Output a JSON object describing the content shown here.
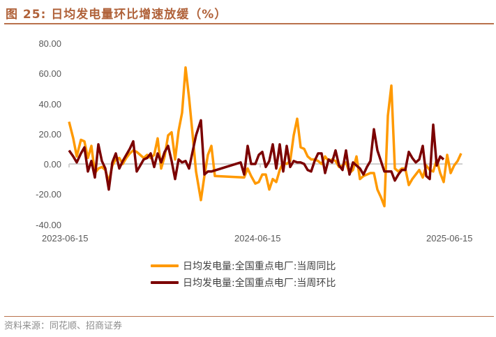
{
  "header": {
    "title": "图 25:  日均发电量环比增速放缓（%）"
  },
  "legend": {
    "items": [
      {
        "label": "日均发电量:全国重点电厂:当周同比",
        "color": "#FF9900"
      },
      {
        "label": "日均发电量:全国重点电厂:当周环比",
        "color": "#7B0000"
      }
    ]
  },
  "footer": {
    "source": "资料来源：同花顺、招商证券"
  },
  "chart_data": {
    "type": "line",
    "title": "图 25: 日均发电量环比增速放缓（%）",
    "xlabel": "",
    "ylabel": "",
    "ylim": [
      -40,
      80
    ],
    "yticks": [
      "80.00",
      "60.00",
      "40.00",
      "20.00",
      "0.00",
      "-20.00",
      "-40.00"
    ],
    "xticks": [
      "2023-06-15",
      "2024-06-15",
      "2025-06-15"
    ],
    "grid": false,
    "legend_position": "bottom",
    "series": [
      {
        "name": "日均发电量:全国重点电厂:当周同比",
        "color": "#FF9900",
        "points": [
          [
            99,
            28
          ],
          [
            105,
            17
          ],
          [
            110,
            5
          ],
          [
            116,
            16
          ],
          [
            121,
            15
          ],
          [
            126,
            4
          ],
          [
            131,
            12
          ],
          [
            136,
            -6
          ],
          [
            141,
            -3
          ],
          [
            146,
            -2
          ],
          [
            151,
            -4
          ],
          [
            156,
            -12
          ],
          [
            161,
            -1
          ],
          [
            166,
            3
          ],
          [
            171,
            4
          ],
          [
            176,
            0
          ],
          [
            181,
            4
          ],
          [
            186,
            7
          ],
          [
            191,
            9
          ],
          [
            196,
            8
          ],
          [
            201,
            6
          ],
          [
            206,
            4
          ],
          [
            211,
            6
          ],
          [
            216,
            4
          ],
          [
            221,
            6
          ],
          [
            226,
            17
          ],
          [
            231,
            -3
          ],
          [
            236,
            5
          ],
          [
            241,
            19
          ],
          [
            246,
            21
          ],
          [
            251,
            3
          ],
          [
            256,
            22
          ],
          [
            261,
            34
          ],
          [
            266,
            64
          ],
          [
            271,
            44
          ],
          [
            276,
            20
          ],
          [
            281,
            -5
          ],
          [
            288,
            -24
          ],
          [
            293,
            -8
          ],
          [
            298,
            6
          ],
          [
            303,
            12
          ],
          [
            308,
            -8
          ],
          [
            350,
            -9
          ],
          [
            355,
            -3
          ],
          [
            360,
            -8
          ],
          [
            366,
            -13
          ],
          [
            371,
            -12
          ],
          [
            376,
            -7
          ],
          [
            381,
            -7
          ],
          [
            386,
            -17
          ],
          [
            391,
            -10
          ],
          [
            396,
            -12
          ],
          [
            401,
            -4
          ],
          [
            406,
            1
          ],
          [
            411,
            0
          ],
          [
            416,
            2
          ],
          [
            421,
            19
          ],
          [
            426,
            30
          ],
          [
            431,
            11
          ],
          [
            436,
            10
          ],
          [
            441,
            5
          ],
          [
            446,
            3
          ],
          [
            451,
            3
          ],
          [
            456,
            2
          ],
          [
            461,
            0
          ],
          [
            466,
            5
          ],
          [
            471,
            2
          ],
          [
            476,
            3
          ],
          [
            481,
            2
          ],
          [
            486,
            -2
          ],
          [
            491,
            -1
          ],
          [
            496,
            1
          ],
          [
            501,
            -6
          ],
          [
            506,
            -4
          ],
          [
            511,
            5
          ],
          [
            516,
            -10
          ],
          [
            521,
            -8
          ],
          [
            526,
            -7
          ],
          [
            531,
            -6
          ],
          [
            536,
            -6
          ],
          [
            541,
            -17
          ],
          [
            546,
            -22
          ],
          [
            551,
            -28
          ],
          [
            556,
            32
          ],
          [
            561,
            52
          ],
          [
            566,
            -3
          ],
          [
            571,
            -5
          ],
          [
            576,
            -3
          ],
          [
            581,
            -3
          ],
          [
            586,
            -14
          ],
          [
            591,
            -10
          ],
          [
            596,
            -7
          ],
          [
            601,
            -4
          ],
          [
            606,
            -9
          ],
          [
            611,
            -1
          ],
          [
            616,
            -4
          ],
          [
            621,
            -5
          ],
          [
            626,
            3
          ],
          [
            631,
            -6
          ],
          [
            636,
            -12
          ],
          [
            641,
            6
          ],
          [
            646,
            -6
          ],
          [
            651,
            -1
          ],
          [
            656,
            2
          ],
          [
            661,
            7
          ]
        ]
      },
      {
        "name": "日均发电量:全国重点电厂:当周环比",
        "color": "#7B0000",
        "points": [
          [
            99,
            9
          ],
          [
            105,
            5
          ],
          [
            110,
            1
          ],
          [
            116,
            7
          ],
          [
            121,
            11
          ],
          [
            126,
            -5
          ],
          [
            131,
            2
          ],
          [
            136,
            -9
          ],
          [
            141,
            13
          ],
          [
            146,
            2
          ],
          [
            151,
            -3
          ],
          [
            156,
            -17
          ],
          [
            161,
            1
          ],
          [
            166,
            7
          ],
          [
            171,
            -3
          ],
          [
            176,
            2
          ],
          [
            181,
            6
          ],
          [
            186,
            10
          ],
          [
            191,
            15
          ],
          [
            196,
            -5
          ],
          [
            201,
            -1
          ],
          [
            206,
            3
          ],
          [
            211,
            4
          ],
          [
            216,
            7
          ],
          [
            221,
            -2
          ],
          [
            226,
            7
          ],
          [
            231,
            1
          ],
          [
            236,
            8
          ],
          [
            241,
            12
          ],
          [
            246,
            2
          ],
          [
            251,
            -10
          ],
          [
            256,
            3
          ],
          [
            261,
            1
          ],
          [
            266,
            2
          ],
          [
            271,
            -3
          ],
          [
            276,
            8
          ],
          [
            281,
            19
          ],
          [
            288,
            29
          ],
          [
            293,
            -7
          ],
          [
            298,
            -5
          ],
          [
            303,
            -5
          ],
          [
            345,
            1
          ],
          [
            350,
            -7
          ],
          [
            355,
            12
          ],
          [
            360,
            0
          ],
          [
            366,
            0
          ],
          [
            371,
            6
          ],
          [
            376,
            8
          ],
          [
            381,
            -2
          ],
          [
            386,
            2
          ],
          [
            391,
            13
          ],
          [
            396,
            -3
          ],
          [
            401,
            13
          ],
          [
            406,
            -5
          ],
          [
            411,
            12
          ],
          [
            416,
            -2
          ],
          [
            421,
            2
          ],
          [
            426,
            1
          ],
          [
            431,
            1
          ],
          [
            436,
            0
          ],
          [
            441,
            -4
          ],
          [
            446,
            -5
          ],
          [
            451,
            2
          ],
          [
            456,
            7
          ],
          [
            461,
            7
          ],
          [
            466,
            -6
          ],
          [
            471,
            3
          ],
          [
            476,
            1
          ],
          [
            481,
            9
          ],
          [
            486,
            -1
          ],
          [
            491,
            -4
          ],
          [
            496,
            9
          ],
          [
            501,
            -7
          ],
          [
            506,
            1
          ],
          [
            511,
            -1
          ],
          [
            516,
            -3
          ],
          [
            521,
            -7
          ],
          [
            526,
            -2
          ],
          [
            531,
            2
          ],
          [
            536,
            23
          ],
          [
            541,
            9
          ],
          [
            546,
            2
          ],
          [
            551,
            -5
          ],
          [
            556,
            -5
          ],
          [
            561,
            -5
          ],
          [
            566,
            -11
          ],
          [
            571,
            -7
          ],
          [
            576,
            -4
          ],
          [
            581,
            -4
          ],
          [
            586,
            8
          ],
          [
            591,
            4
          ],
          [
            596,
            1
          ],
          [
            601,
            3
          ],
          [
            606,
            12
          ],
          [
            611,
            -8
          ],
          [
            616,
            -10
          ],
          [
            621,
            26
          ],
          [
            626,
            -1
          ],
          [
            631,
            5
          ],
          [
            636,
            3
          ]
        ]
      }
    ]
  }
}
